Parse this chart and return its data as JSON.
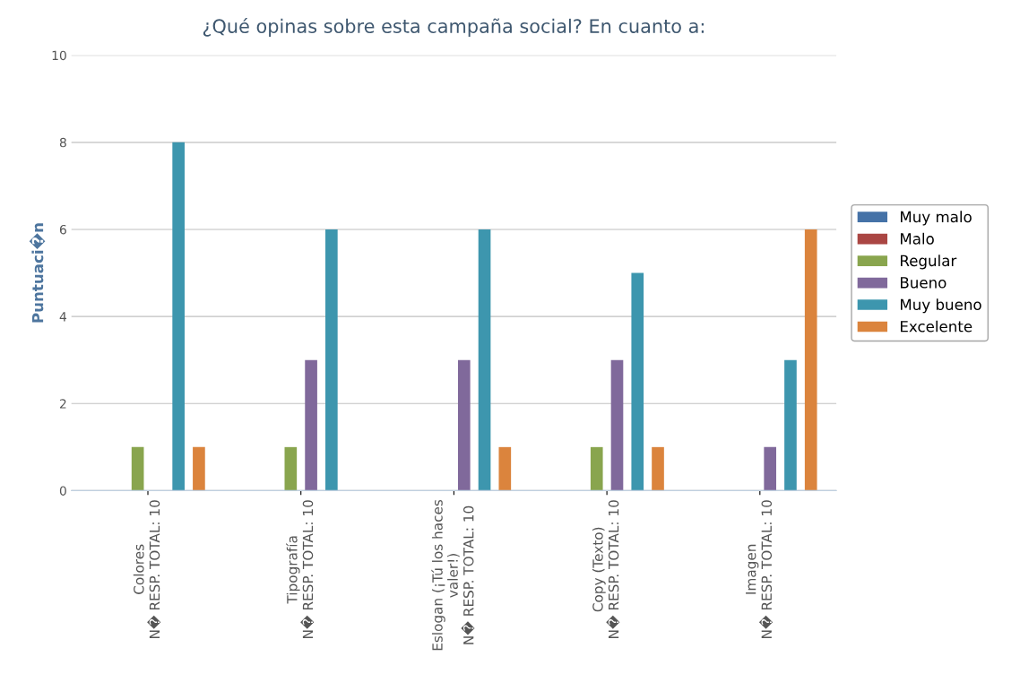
{
  "chart_data": {
    "type": "bar",
    "title": "¿Qué opinas sobre esta campaña social? En cuanto a:",
    "ylabel": "Puntuaci�n",
    "categories": [
      "Colores\nN� RESP. TOTAL: 10",
      "Tipografía\nN� RESP. TOTAL: 10",
      "Eslogan (¡Tú los haces\nvaler!)\nN� RESP. TOTAL: 10",
      "Copy (Texto)\nN� RESP. TOTAL: 10",
      "Imagen\nN� RESP. TOTAL: 10"
    ],
    "series": [
      {
        "name": "Muy malo",
        "color": "#4572a7",
        "values": [
          0,
          0,
          0,
          0,
          0
        ]
      },
      {
        "name": "Malo",
        "color": "#aa4643",
        "values": [
          0,
          0,
          0,
          0,
          0
        ]
      },
      {
        "name": "Regular",
        "color": "#89a54e",
        "values": [
          1,
          1,
          0,
          1,
          0
        ]
      },
      {
        "name": "Bueno",
        "color": "#80699b",
        "values": [
          0,
          3,
          3,
          3,
          1
        ]
      },
      {
        "name": "Muy bueno",
        "color": "#3d96ae",
        "values": [
          8,
          6,
          6,
          5,
          3
        ]
      },
      {
        "name": "Excelente",
        "color": "#db843d",
        "values": [
          1,
          0,
          1,
          1,
          6
        ]
      }
    ],
    "ylim": [
      0,
      10
    ],
    "yticks": [
      0,
      2,
      4,
      6,
      8,
      10
    ],
    "grid": "y",
    "legend": "right"
  }
}
